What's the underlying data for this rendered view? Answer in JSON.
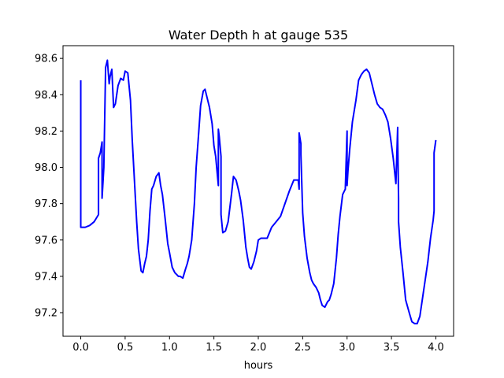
{
  "colors": {
    "line": "#0000ff",
    "axes": "#000000",
    "background": "#ffffff"
  },
  "chart_data": {
    "type": "line",
    "title": "Water Depth h at gauge 535",
    "xlabel": "hours",
    "ylabel": "",
    "xlim": [
      -0.2,
      4.2
    ],
    "ylim": [
      97.07,
      98.67
    ],
    "xticks": [
      0.0,
      0.5,
      1.0,
      1.5,
      2.0,
      2.5,
      3.0,
      3.5,
      4.0
    ],
    "xtick_labels": [
      "0.0",
      "0.5",
      "1.0",
      "1.5",
      "2.0",
      "2.5",
      "3.0",
      "3.5",
      "4.0"
    ],
    "yticks": [
      97.2,
      97.4,
      97.6,
      97.8,
      98.0,
      98.2,
      98.4,
      98.6
    ],
    "ytick_labels": [
      "97.2",
      "97.4",
      "97.6",
      "97.8",
      "98.0",
      "98.2",
      "98.4",
      "98.6"
    ],
    "grid": false,
    "series": [
      {
        "x": [
          0.0,
          0.0,
          0.0,
          0.0,
          0.05,
          0.1,
          0.15,
          0.2,
          0.2,
          0.22,
          0.24,
          0.24,
          0.26,
          0.28,
          0.3,
          0.32,
          0.33,
          0.35,
          0.37,
          0.39,
          0.42,
          0.45,
          0.48,
          0.5,
          0.53,
          0.56,
          0.58,
          0.6,
          0.63,
          0.65,
          0.68,
          0.7,
          0.72,
          0.74,
          0.76,
          0.78,
          0.8,
          0.82,
          0.85,
          0.88,
          0.9,
          0.92,
          0.95,
          0.98,
          1.0,
          1.03,
          1.06,
          1.08,
          1.1,
          1.12,
          1.15,
          1.18,
          1.2,
          1.22,
          1.25,
          1.28,
          1.3,
          1.33,
          1.35,
          1.38,
          1.4,
          1.42,
          1.45,
          1.48,
          1.5,
          1.52,
          1.55,
          1.55,
          1.56,
          1.58,
          1.58,
          1.6,
          1.63,
          1.66,
          1.68,
          1.7,
          1.72,
          1.75,
          1.78,
          1.8,
          1.83,
          1.86,
          1.88,
          1.9,
          1.92,
          1.95,
          1.98,
          2.0,
          2.03,
          2.06,
          2.1,
          2.15,
          2.2,
          2.25,
          2.3,
          2.35,
          2.4,
          2.45,
          2.46,
          2.46,
          2.48,
          2.48,
          2.5,
          2.52,
          2.55,
          2.58,
          2.6,
          2.62,
          2.65,
          2.68,
          2.7,
          2.72,
          2.75,
          2.78,
          2.8,
          2.82,
          2.85,
          2.88,
          2.9,
          2.92,
          2.95,
          2.98,
          3.0,
          3.0,
          3.01,
          3.03,
          3.06,
          3.1,
          3.13,
          3.16,
          3.19,
          3.22,
          3.25,
          3.28,
          3.31,
          3.34,
          3.37,
          3.4,
          3.43,
          3.46,
          3.49,
          3.52,
          3.55,
          3.57,
          3.57,
          3.58,
          3.58,
          3.6,
          3.63,
          3.66,
          3.7,
          3.73,
          3.76,
          3.79,
          3.82,
          3.85,
          3.88,
          3.91,
          3.94,
          3.97,
          3.98,
          3.98,
          4.0
        ],
        "y": [
          98.48,
          97.99,
          97.67,
          97.67,
          97.67,
          97.68,
          97.7,
          97.74,
          98.05,
          98.08,
          98.14,
          97.83,
          98.0,
          98.55,
          98.59,
          98.46,
          98.5,
          98.54,
          98.33,
          98.35,
          98.45,
          98.49,
          98.48,
          98.53,
          98.52,
          98.37,
          98.15,
          97.97,
          97.7,
          97.55,
          97.43,
          97.42,
          97.47,
          97.51,
          97.6,
          97.76,
          97.88,
          97.9,
          97.95,
          97.97,
          97.9,
          97.85,
          97.72,
          97.58,
          97.53,
          97.45,
          97.42,
          97.41,
          97.4,
          97.4,
          97.39,
          97.44,
          97.47,
          97.51,
          97.6,
          97.8,
          98.0,
          98.2,
          98.34,
          98.42,
          98.43,
          98.39,
          98.33,
          98.24,
          98.12,
          98.06,
          97.9,
          98.21,
          98.17,
          98.06,
          97.74,
          97.64,
          97.65,
          97.7,
          97.78,
          97.86,
          97.95,
          97.93,
          97.87,
          97.82,
          97.71,
          97.56,
          97.5,
          97.45,
          97.44,
          97.48,
          97.54,
          97.6,
          97.61,
          97.61,
          97.61,
          97.67,
          97.7,
          97.73,
          97.8,
          97.87,
          97.93,
          97.93,
          97.88,
          98.19,
          98.13,
          98.07,
          97.75,
          97.62,
          97.5,
          97.42,
          97.38,
          97.36,
          97.34,
          97.31,
          97.27,
          97.24,
          97.23,
          97.26,
          97.27,
          97.3,
          97.36,
          97.5,
          97.63,
          97.73,
          97.85,
          97.88,
          98.2,
          97.9,
          97.98,
          98.1,
          98.25,
          98.37,
          98.48,
          98.51,
          98.53,
          98.54,
          98.52,
          98.46,
          98.4,
          98.35,
          98.33,
          98.32,
          98.29,
          98.25,
          98.16,
          98.05,
          97.91,
          98.22,
          98.17,
          97.83,
          97.7,
          97.56,
          97.42,
          97.27,
          97.2,
          97.15,
          97.14,
          97.14,
          97.18,
          97.28,
          97.38,
          97.48,
          97.61,
          97.71,
          97.76,
          98.08,
          98.15
        ]
      }
    ]
  }
}
